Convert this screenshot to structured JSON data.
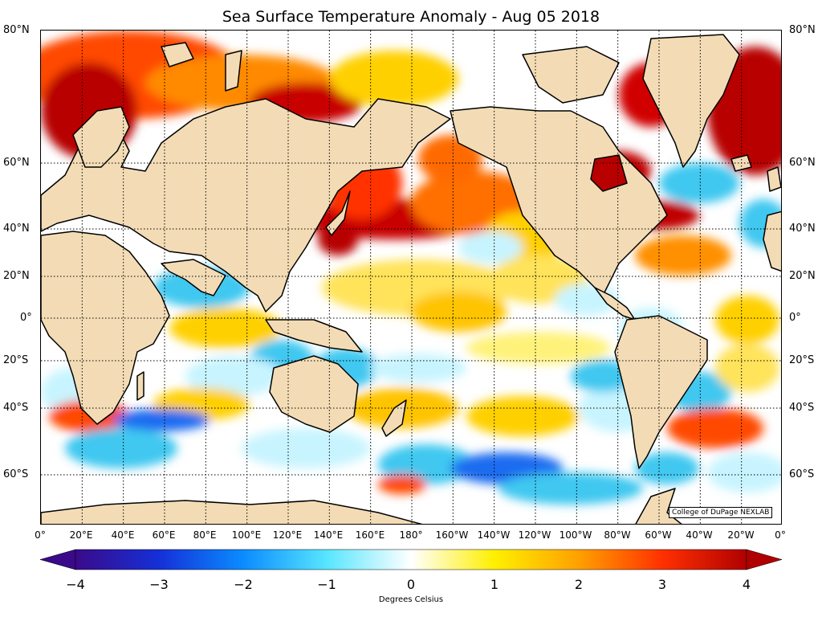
{
  "title": "Sea Surface Temperature Anomaly - Aug 05 2018",
  "credit": "College of DuPage NEXLAB",
  "colorbar": {
    "label": "Degrees Celsius",
    "min": -4,
    "max": 4,
    "ticks": [
      "−4",
      "−3",
      "−2",
      "−1",
      "0",
      "1",
      "2",
      "3",
      "4"
    ],
    "colors": [
      "#3a0a8a",
      "#1530d8",
      "#0a8cff",
      "#58e6ff",
      "#ffffff",
      "#ffef00",
      "#ffa000",
      "#ff3000",
      "#b00000"
    ]
  },
  "lat_labels": [
    "80°N",
    "60°N",
    "40°N",
    "20°N",
    "0°",
    "20°S",
    "40°S",
    "60°S"
  ],
  "lon_labels": [
    "0°",
    "20°E",
    "40°E",
    "60°E",
    "80°E",
    "100°E",
    "120°E",
    "140°E",
    "160°E",
    "180°",
    "160°W",
    "140°W",
    "120°W",
    "100°W",
    "80°W",
    "60°W",
    "40°W",
    "20°W",
    "0°"
  ],
  "colors": {
    "land": "#f3dcb5",
    "ocean_base": "#ffffff",
    "coast": "#000000",
    "warm_strong": "#b80000",
    "warm": "#ff4a00",
    "warm_mild": "#ffb800",
    "warm_light": "#fff27a",
    "cool_light": "#c8f4ff",
    "cool": "#3fc8f0",
    "cool_strong": "#1e6cf0"
  }
}
